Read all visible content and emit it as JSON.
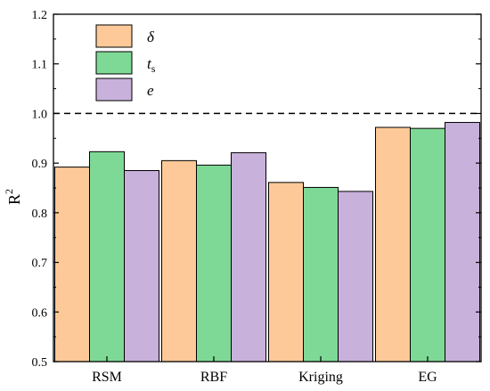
{
  "chart_data": {
    "type": "bar",
    "categories": [
      "RSM",
      "RBF",
      "Kriging",
      "EG"
    ],
    "series": [
      {
        "name": "δ",
        "name_sub": "",
        "color": "#FDC998",
        "values": [
          0.892,
          0.905,
          0.861,
          0.972
        ]
      },
      {
        "name": "t",
        "name_sub": "s",
        "color": "#7FD996",
        "values": [
          0.923,
          0.896,
          0.851,
          0.97
        ]
      },
      {
        "name": "e",
        "name_sub": "",
        "color": "#C8B1DA",
        "values": [
          0.885,
          0.921,
          0.843,
          0.982
        ]
      }
    ],
    "ylabel": "R",
    "ylabel_sup": "2",
    "ylim": [
      0.5,
      1.2
    ],
    "yticks": [
      "0.5",
      "0.6",
      "0.7",
      "0.8",
      "0.9",
      "1.0",
      "1.1",
      "1.2"
    ],
    "reference_line": 1.0,
    "legend_position": "top-left",
    "grid": false
  }
}
